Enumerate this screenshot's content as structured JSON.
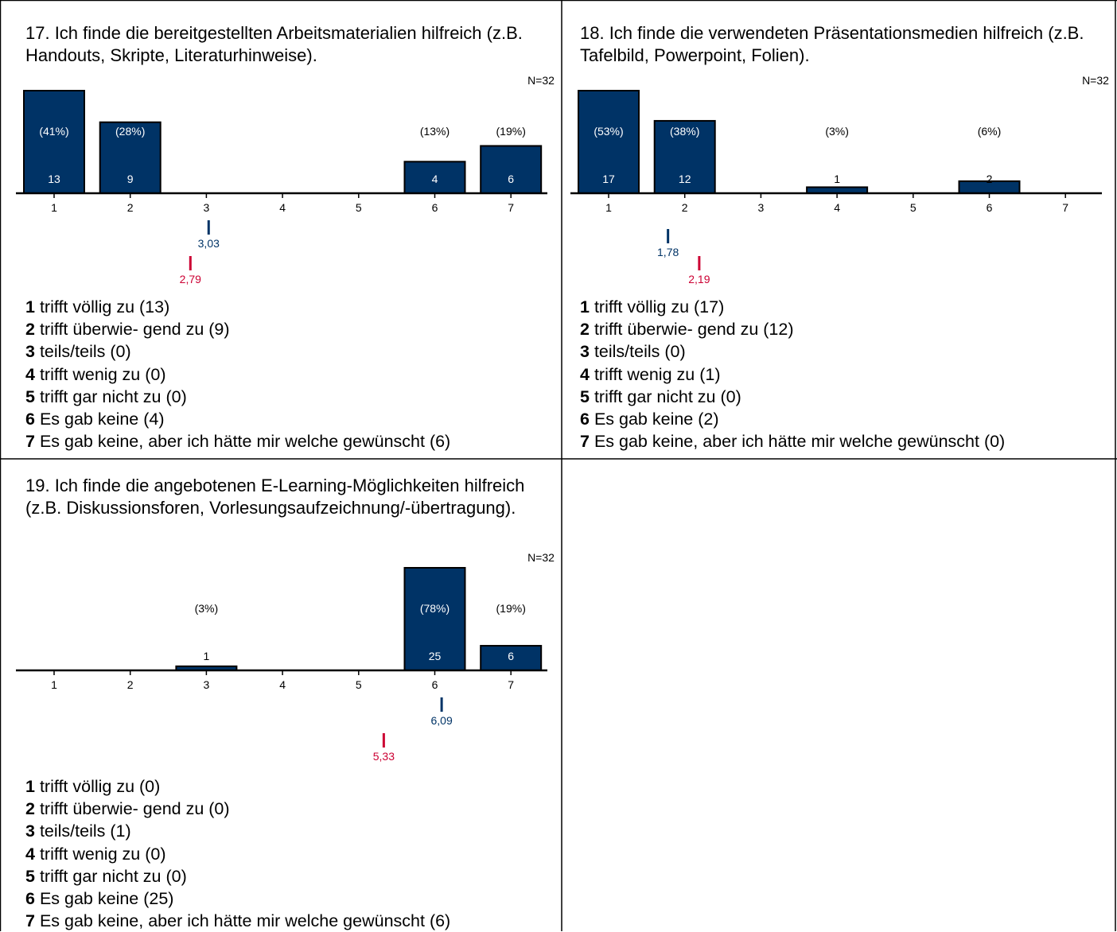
{
  "panels": [
    {
      "title": "17. Ich finde die bereitgestellten Arbeitsmaterialien hilfreich (z.B. Handouts, Skripte, Literaturhinweise).",
      "legend": [
        {
          "code": "1",
          "text": "trifft völlig zu  (13)"
        },
        {
          "code": "2",
          "text": "trifft überwie- gend zu  (9)"
        },
        {
          "code": "3",
          "text": "teils/teils (0)"
        },
        {
          "code": "4",
          "text": "trifft wenig zu  (0)"
        },
        {
          "code": "5",
          "text": "trifft gar nicht zu  (0)"
        },
        {
          "code": "6",
          "text": "Es gab keine (4)"
        },
        {
          "code": "7",
          "text": "Es gab keine, aber ich hätte mir welche gewünscht (6)"
        }
      ]
    },
    {
      "title": "18. Ich finde die verwendeten Präsentationsmedien hilfreich (z.B. Tafelbild, Powerpoint, Folien).",
      "legend": [
        {
          "code": "1",
          "text": "trifft völlig zu  (17)"
        },
        {
          "code": "2",
          "text": "trifft überwie- gend zu  (12)"
        },
        {
          "code": "3",
          "text": "teils/teils (0)"
        },
        {
          "code": "4",
          "text": "trifft wenig zu  (1)"
        },
        {
          "code": "5",
          "text": "trifft gar nicht zu  (0)"
        },
        {
          "code": "6",
          "text": "Es gab keine (2)"
        },
        {
          "code": "7",
          "text": "Es gab keine, aber ich hätte mir welche gewünscht (0)"
        }
      ]
    },
    {
      "title": "19. Ich finde die angebotenen E-Learning-Möglichkeiten hilfreich (z.B. Diskussionsforen, Vorlesungsaufzeichnung/-übertragung).",
      "legend": [
        {
          "code": "1",
          "text": "trifft völlig zu  (0)"
        },
        {
          "code": "2",
          "text": "trifft überwie- gend zu  (0)"
        },
        {
          "code": "3",
          "text": "teils/teils (1)"
        },
        {
          "code": "4",
          "text": "trifft wenig zu  (0)"
        },
        {
          "code": "5",
          "text": "trifft gar nicht zu  (0)"
        },
        {
          "code": "6",
          "text": "Es gab keine (25)"
        },
        {
          "code": "7",
          "text": "Es gab keine, aber ich hätte mir welche gewünscht (6)"
        }
      ]
    }
  ],
  "colors": {
    "bar": "#003366",
    "mean_primary": "#003366",
    "mean_secondary": "#cc0033",
    "bar_text": "#ffffff",
    "frame": "#000000"
  },
  "chart_data": [
    {
      "type": "bar",
      "categories": [
        "1",
        "2",
        "3",
        "4",
        "5",
        "6",
        "7"
      ],
      "values": [
        13,
        9,
        0,
        0,
        0,
        4,
        6
      ],
      "percent_labels": [
        "(41%)",
        "(28%)",
        "",
        "",
        "",
        "(13%)",
        "(19%)"
      ],
      "count_labels": [
        "13",
        "9",
        "",
        "",
        "",
        "4",
        "6"
      ],
      "n_label": "N=32",
      "markers": [
        {
          "value": 3.03,
          "label": "3,03",
          "color": "#003366"
        },
        {
          "value": 2.79,
          "label": "2,79",
          "color": "#cc0033"
        }
      ]
    },
    {
      "type": "bar",
      "categories": [
        "1",
        "2",
        "3",
        "4",
        "5",
        "6",
        "7"
      ],
      "values": [
        17,
        12,
        0,
        1,
        0,
        2,
        0
      ],
      "percent_labels": [
        "(53%)",
        "(38%)",
        "",
        "(3%)",
        "",
        "(6%)",
        ""
      ],
      "count_labels": [
        "17",
        "12",
        "",
        "1",
        "",
        "2",
        ""
      ],
      "n_label": "N=32",
      "markers": [
        {
          "value": 1.78,
          "label": "1,78",
          "color": "#003366"
        },
        {
          "value": 2.19,
          "label": "2,19",
          "color": "#cc0033"
        }
      ]
    },
    {
      "type": "bar",
      "categories": [
        "1",
        "2",
        "3",
        "4",
        "5",
        "6",
        "7"
      ],
      "values": [
        0,
        0,
        1,
        0,
        0,
        25,
        6
      ],
      "percent_labels": [
        "",
        "",
        "(3%)",
        "",
        "",
        "(78%)",
        "(19%)"
      ],
      "count_labels": [
        "",
        "",
        "1",
        "",
        "",
        "25",
        "6"
      ],
      "n_label": "N=32",
      "markers": [
        {
          "value": 6.09,
          "label": "6,09",
          "color": "#003366"
        },
        {
          "value": 5.33,
          "label": "5,33",
          "color": "#cc0033"
        }
      ]
    }
  ]
}
